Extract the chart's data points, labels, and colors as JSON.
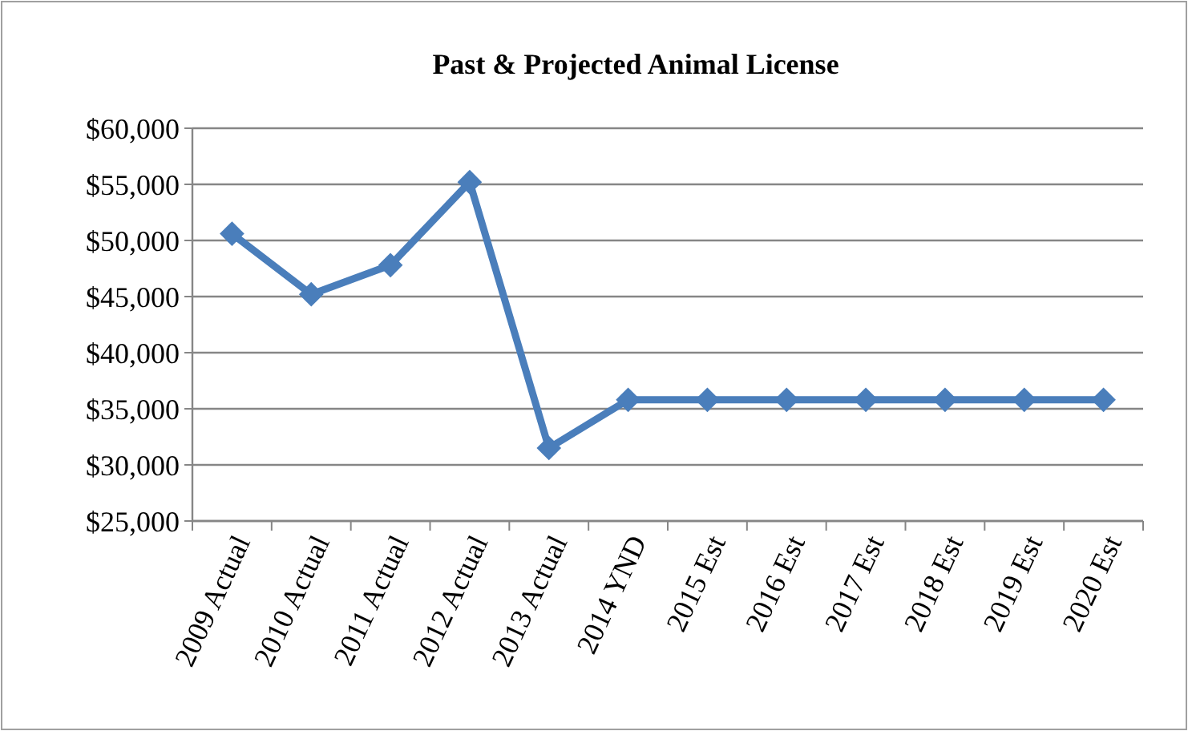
{
  "chart_data": {
    "type": "line",
    "title": "Past & Projected Animal  License",
    "categories": [
      "2009 Actual",
      "2010 Actual",
      "2011 Actual",
      "2012 Actual",
      "2013 Actual",
      "2014 YND",
      "2015 Est",
      "2016 Est",
      "2017 Est",
      "2018 Est",
      "2019 Est",
      "2020 Est"
    ],
    "series": [
      {
        "color": "#4a7ebb",
        "values": [
          50600,
          45200,
          47800,
          55200,
          31500,
          35800,
          35800,
          35800,
          35800,
          35800,
          35800,
          35800
        ]
      }
    ],
    "ylim": [
      25000,
      60000
    ],
    "yticks": [
      {
        "value": 25000,
        "label": "$25,000"
      },
      {
        "value": 30000,
        "label": "$30,000"
      },
      {
        "value": 35000,
        "label": "$35,000"
      },
      {
        "value": 40000,
        "label": "$40,000"
      },
      {
        "value": 45000,
        "label": "$45,000"
      },
      {
        "value": 50000,
        "label": "$50,000"
      },
      {
        "value": 55000,
        "label": "$55,000"
      },
      {
        "value": 60000,
        "label": "$60,000"
      }
    ],
    "grid": "y",
    "marker": "diamond",
    "line_style": "solid"
  }
}
